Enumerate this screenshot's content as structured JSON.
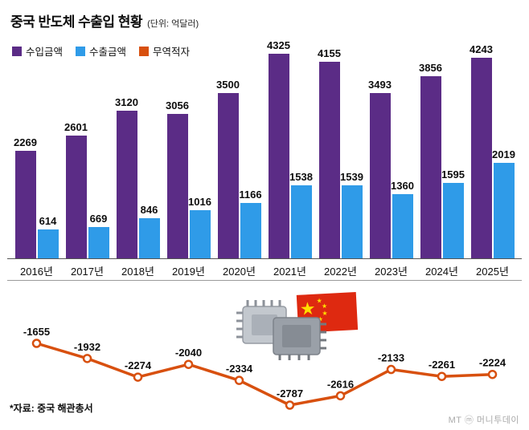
{
  "header": {
    "title": "중국 반도체 수출입 현황",
    "unit": "(단위: 억달러)"
  },
  "legend": [
    {
      "label": "수입금액",
      "color": "#5B2C86"
    },
    {
      "label": "수출금액",
      "color": "#2F9BE8"
    },
    {
      "label": "무역적자",
      "color": "#D8500F"
    }
  ],
  "chart_data": {
    "type": "bar",
    "title": "중국 반도체 수출입 현황",
    "unit_label": "(단위: 억달러)",
    "categories": [
      "2016년",
      "2017년",
      "2018년",
      "2019년",
      "2020년",
      "2021년",
      "2022년",
      "2023년",
      "2024년",
      "2025년"
    ],
    "series": [
      {
        "name": "수입금액",
        "type": "bar",
        "color": "#5B2C86",
        "values": [
          2269,
          2601,
          3120,
          3056,
          3500,
          4325,
          4155,
          3493,
          3856,
          4243
        ]
      },
      {
        "name": "수출금액",
        "type": "bar",
        "color": "#2F9BE8",
        "values": [
          614,
          669,
          846,
          1016,
          1166,
          1538,
          1539,
          1360,
          1595,
          2019
        ]
      },
      {
        "name": "무역적자",
        "type": "line",
        "color": "#D8500F",
        "values": [
          -1655,
          -1932,
          -2274,
          -2040,
          -2334,
          -2787,
          -2616,
          -2133,
          -2261,
          -2224
        ]
      }
    ],
    "ylim": [
      0,
      4500
    ],
    "grid": false,
    "legend_position": "top-left",
    "value_labels": true
  },
  "graphic": {
    "flag_red": "#DE2910",
    "flag_star": "#FFDE00"
  },
  "footer": {
    "source": "*자료: 중국 해관총서",
    "watermark": "MT ⓜ 머니투데이"
  }
}
